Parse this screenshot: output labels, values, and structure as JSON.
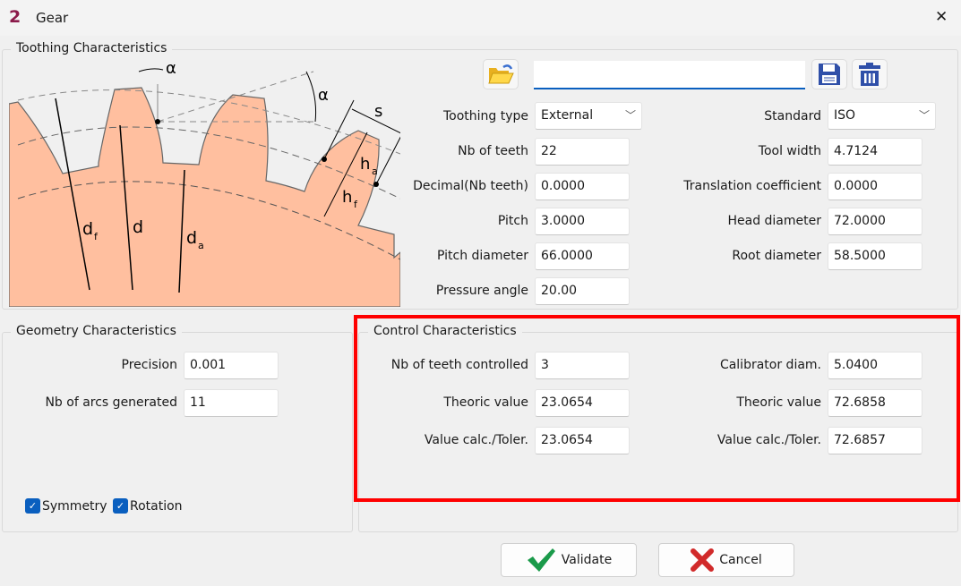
{
  "window": {
    "title": "Gear",
    "close_glyph": "✕",
    "app_icon": "2"
  },
  "toothing": {
    "group_label": "Toothing Characteristics",
    "diagram_labels": {
      "alpha1": "α",
      "alpha2": "α",
      "s": "s",
      "ha": "h",
      "ha_sub": "a",
      "hf": "h",
      "hf_sub": "f",
      "df": "d",
      "df_sub": "f",
      "d": "d",
      "da": "d",
      "da_sub": "a"
    },
    "file_name": "",
    "toolbar": {
      "open_icon": "folder-open-icon",
      "save_icon": "save-icon",
      "delete_icon": "trash-icon"
    },
    "left": [
      {
        "label": "Toothing type",
        "value": "External",
        "type": "select"
      },
      {
        "label": "Nb of teeth",
        "value": "22"
      },
      {
        "label": "Decimal(Nb teeth)",
        "value": "0.0000"
      },
      {
        "label": "Pitch",
        "value": "3.0000"
      },
      {
        "label": "Pitch diameter",
        "value": "66.0000"
      },
      {
        "label": "Pressure angle",
        "value": "20.00"
      }
    ],
    "right": [
      {
        "label": "Standard",
        "value": "ISO",
        "type": "select"
      },
      {
        "label": "Tool width",
        "value": "4.7124"
      },
      {
        "label": "Translation coefficient",
        "value": "0.0000"
      },
      {
        "label": "Head diameter",
        "value": "72.0000"
      },
      {
        "label": "Root diameter",
        "value": "58.5000"
      }
    ]
  },
  "geometry": {
    "group_label": "Geometry Characteristics",
    "fields": [
      {
        "label": "Precision",
        "value": "0.001"
      },
      {
        "label": "Nb of arcs generated",
        "value": "11"
      }
    ],
    "checkboxes": [
      {
        "label": "Symmetry",
        "checked": true
      },
      {
        "label": "Rotation",
        "checked": true
      }
    ]
  },
  "control": {
    "group_label": "Control Characteristics",
    "left": [
      {
        "label": "Nb of teeth controlled",
        "value": "3"
      },
      {
        "label": "Theoric value",
        "value": "23.0654"
      },
      {
        "label": "Value calc./Toler.",
        "value": "23.0654"
      }
    ],
    "right": [
      {
        "label": "Calibrator diam.",
        "value": "5.0400"
      },
      {
        "label": "Theoric value",
        "value": "72.6858"
      },
      {
        "label": "Value calc./Toler.",
        "value": "72.6857"
      }
    ]
  },
  "buttons": {
    "validate": "Validate",
    "cancel": "Cancel"
  },
  "colors": {
    "gear_fill": "#ffbf9f",
    "highlight": "#ff0000",
    "accent": "#0a5fbf"
  }
}
